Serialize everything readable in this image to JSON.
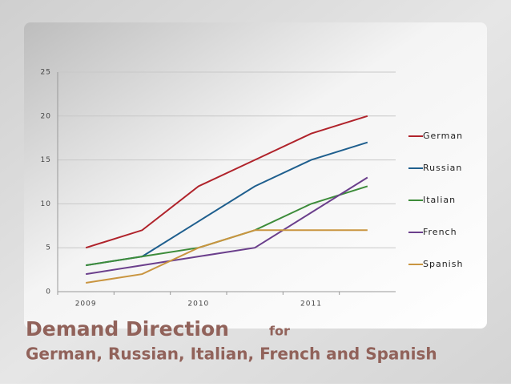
{
  "chart_data": {
    "type": "line",
    "title": "Demand Direction",
    "title_connector": "for",
    "subtitle": "German, Russian, Italian, French and Spanish",
    "categories": [
      "2009",
      null,
      "2010",
      null,
      "2011",
      null
    ],
    "series": [
      {
        "name": "German",
        "color": "#b0232b",
        "values": [
          5,
          7,
          12,
          15,
          18,
          20
        ]
      },
      {
        "name": "Russian",
        "color": "#1f5f8e",
        "values": [
          3,
          4,
          8,
          12,
          15,
          17
        ]
      },
      {
        "name": "Italian",
        "color": "#3d8c3a",
        "values": [
          3,
          4,
          5,
          7,
          10,
          12
        ]
      },
      {
        "name": "French",
        "color": "#6b3f8c",
        "values": [
          2,
          3,
          4,
          5,
          9,
          13
        ]
      },
      {
        "name": "Spanish",
        "color": "#c99540",
        "values": [
          1,
          2,
          5,
          7,
          7,
          7
        ]
      }
    ],
    "ylim": [
      0,
      25
    ],
    "yticks": [
      0,
      5,
      10,
      15,
      20,
      25
    ],
    "grid": true,
    "legend": "right"
  }
}
